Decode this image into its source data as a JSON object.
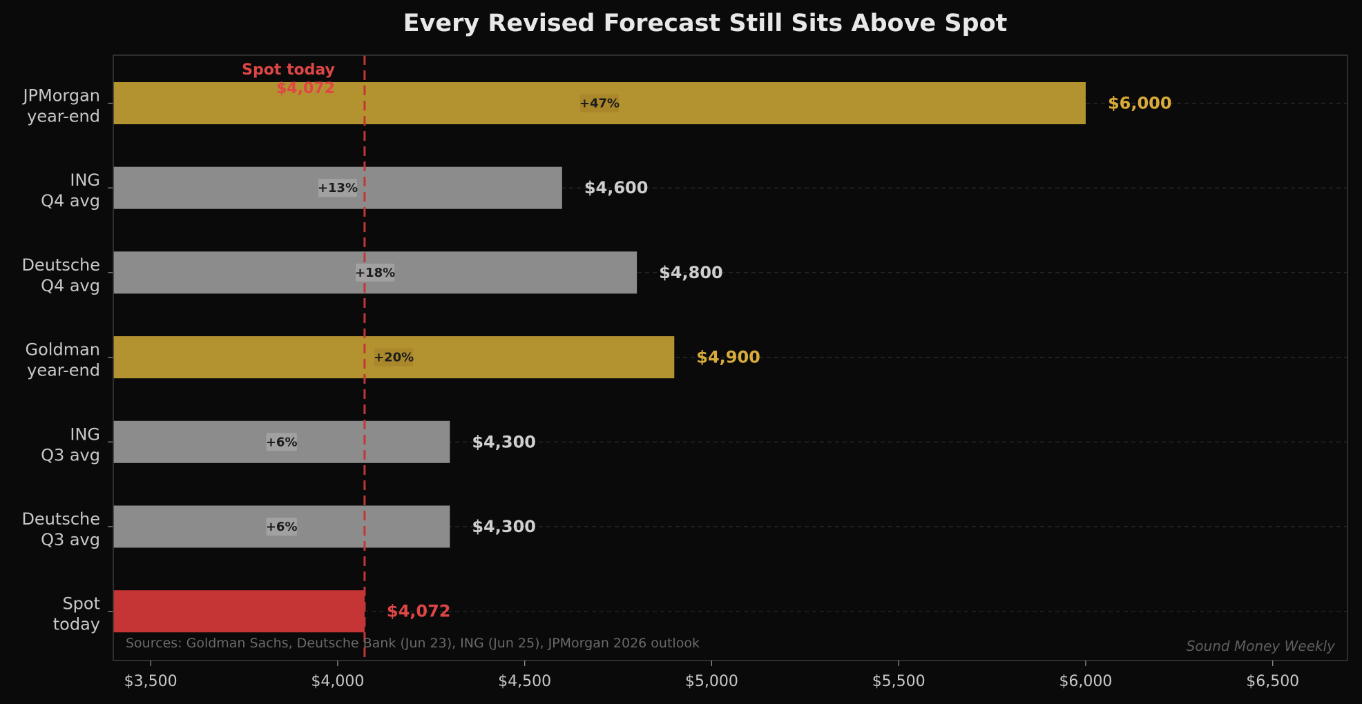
{
  "chart_data": {
    "type": "bar",
    "orientation": "horizontal",
    "title": "Every Revised Forecast Still Sits Above Spot",
    "xlabel": "",
    "ylabel": "",
    "xlim": [
      3400,
      6700
    ],
    "x_ticks": [
      3500,
      4000,
      4500,
      5000,
      5500,
      6000,
      6500
    ],
    "x_tick_labels": [
      "$3,500",
      "$4,000",
      "$4,500",
      "$5,000",
      "$5,500",
      "$6,000",
      "$6,500"
    ],
    "categories": [
      {
        "line1": "JPMorgan",
        "line2": "year-end"
      },
      {
        "line1": "ING",
        "line2": "Q4 avg"
      },
      {
        "line1": "Deutsche",
        "line2": "Q4 avg"
      },
      {
        "line1": "Goldman",
        "line2": "year-end"
      },
      {
        "line1": "ING",
        "line2": "Q3 avg"
      },
      {
        "line1": "Deutsche",
        "line2": "Q3 avg"
      },
      {
        "line1": "Spot",
        "line2": "today"
      }
    ],
    "values": [
      6000,
      4600,
      4800,
      4900,
      4300,
      4300,
      4072
    ],
    "value_labels": [
      "$6,000",
      "$4,600",
      "$4,800",
      "$4,900",
      "$4,300",
      "$4,300",
      "$4,072"
    ],
    "pct_labels": [
      "+47%",
      "+13%",
      "+18%",
      "+20%",
      "+6%",
      "+6%",
      ""
    ],
    "bar_kinds": [
      "year-end",
      "quarterly",
      "quarterly",
      "year-end",
      "quarterly",
      "quarterly",
      "spot"
    ],
    "reference_line": {
      "value": 4072,
      "label_line1": "Spot today",
      "label_line2": "$4,072"
    },
    "grid": "horizontal dashed at each bar",
    "colors": {
      "year-end": "#b39330",
      "year-end-label": "#d9ab3b",
      "quarterly": "#8c8c8c",
      "quarterly-label": "#cfcfcf",
      "spot": "#c53535",
      "spot-label": "#e04646",
      "reference": "#c53535",
      "background": "#0a0a0a",
      "text": "#c8c8c8",
      "title": "#e8e8e8"
    },
    "source_note": "Sources: Goldman Sachs, Deutsche Bank (Jun 23), ING (Jun 25), JPMorgan 2026 outlook",
    "watermark": "Sound Money Weekly"
  }
}
